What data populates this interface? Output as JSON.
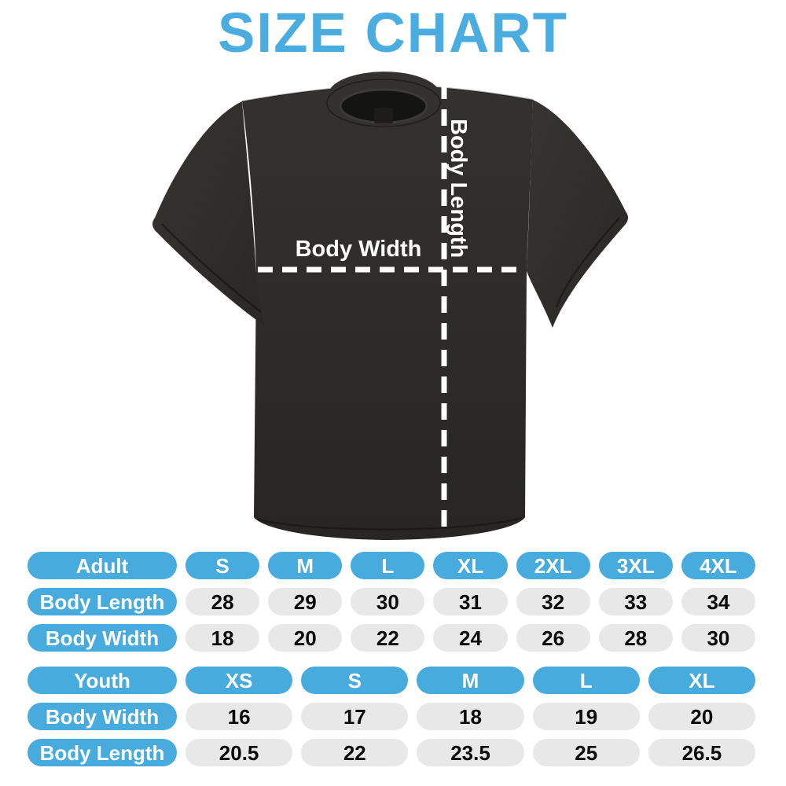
{
  "title": "SIZE CHART",
  "colors": {
    "title_blue": "#4AACDF",
    "accent_blue": "#47ABDD",
    "cell_gray": "#E8E8E9",
    "shirt_dark": "#2D2C2A",
    "measure_line_white": "#FFFFFF"
  },
  "diagram": {
    "width_label": "Body Width",
    "length_label": "Body Length"
  },
  "size_tables": [
    {
      "id": "adult",
      "columns": [
        "Adult",
        "S",
        "M",
        "L",
        "XL",
        "2XL",
        "3XL",
        "4XL"
      ],
      "rows": [
        {
          "label": "Body Length",
          "values": [
            "28",
            "29",
            "30",
            "31",
            "32",
            "33",
            "34"
          ]
        },
        {
          "label": "Body Width",
          "values": [
            "18",
            "20",
            "22",
            "24",
            "26",
            "28",
            "30"
          ]
        }
      ]
    },
    {
      "id": "youth",
      "columns": [
        "Youth",
        "XS",
        "S",
        "M",
        "L",
        "XL"
      ],
      "rows": [
        {
          "label": "Body Width",
          "values": [
            "16",
            "17",
            "18",
            "19",
            "20"
          ]
        },
        {
          "label": "Body Length",
          "values": [
            "20.5",
            "22",
            "23.5",
            "25",
            "26.5"
          ]
        }
      ]
    }
  ]
}
